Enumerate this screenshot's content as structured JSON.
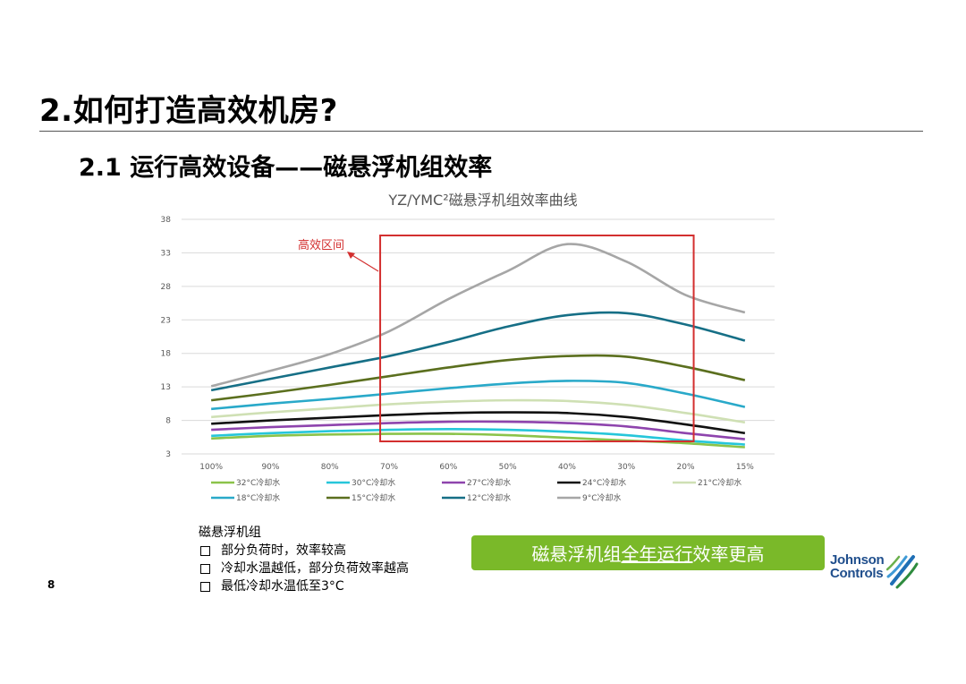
{
  "slide": {
    "title": "2.如何打造高效机房?",
    "section": "2.1 运行高效设备——磁悬浮机组效率",
    "page_number": "8"
  },
  "notes": {
    "heading": "磁悬浮机组",
    "items": [
      "部分负荷时，效率较高",
      "冷却水温越低，部分负荷效率越高",
      "最低冷却水温低至3°C"
    ]
  },
  "banner": {
    "prefix": "磁悬浮机组",
    "underlined": "全年运行",
    "suffix": "效率更高",
    "color": "#7ab929"
  },
  "logo": {
    "line1": "Johnson",
    "line2": "Controls",
    "color": "#1f4e8c"
  },
  "chart_data": {
    "type": "line",
    "title": "YZ/YMC²磁悬浮机组效率曲线",
    "categories": [
      "100%",
      "90%",
      "80%",
      "70%",
      "60%",
      "50%",
      "40%",
      "30%",
      "20%",
      "15%"
    ],
    "ylim": [
      3,
      38
    ],
    "yticks": [
      3,
      8,
      13,
      18,
      23,
      28,
      33,
      38
    ],
    "grid": true,
    "legend_position": "bottom",
    "annotation": {
      "label": "高效区间",
      "from_category": "70%",
      "to_category": "20%",
      "color": "#d32f2f"
    },
    "series": [
      {
        "name": "32°C冷却水",
        "color": "#8bc34a",
        "values": [
          5.3,
          5.7,
          5.9,
          6.0,
          6.0,
          5.8,
          5.4,
          5.0,
          4.6,
          4.0
        ]
      },
      {
        "name": "30°C冷却水",
        "color": "#26c6da",
        "values": [
          5.7,
          6.1,
          6.4,
          6.6,
          6.7,
          6.6,
          6.3,
          5.8,
          5.0,
          4.4
        ]
      },
      {
        "name": "27°C冷却水",
        "color": "#8e44ad",
        "values": [
          6.6,
          7.0,
          7.3,
          7.6,
          7.8,
          7.8,
          7.6,
          7.1,
          6.1,
          5.2
        ]
      },
      {
        "name": "24°C冷却水",
        "color": "#111111",
        "values": [
          7.5,
          8.0,
          8.4,
          8.8,
          9.1,
          9.2,
          9.1,
          8.5,
          7.4,
          6.1
        ]
      },
      {
        "name": "21°C冷却水",
        "color": "#cfe0b4",
        "values": [
          8.5,
          9.2,
          9.8,
          10.4,
          10.8,
          11.0,
          10.9,
          10.3,
          9.1,
          7.7
        ]
      },
      {
        "name": "18°C冷却水",
        "color": "#29a9c9",
        "values": [
          9.7,
          10.5,
          11.2,
          12.0,
          12.8,
          13.5,
          13.9,
          13.6,
          12.0,
          10.0
        ]
      },
      {
        "name": "15°C冷却水",
        "color": "#5b6f1e",
        "values": [
          11.0,
          12.1,
          13.3,
          14.6,
          15.9,
          17.0,
          17.6,
          17.5,
          16.0,
          14.0
        ]
      },
      {
        "name": "12°C冷却水",
        "color": "#166f86",
        "values": [
          12.5,
          14.2,
          15.9,
          17.6,
          19.7,
          22.0,
          23.7,
          24.0,
          22.3,
          19.9
        ]
      },
      {
        "name": "9°C冷却水",
        "color": "#a6a6a6",
        "values": [
          13.1,
          15.4,
          17.9,
          21.3,
          26.1,
          30.3,
          34.3,
          31.7,
          26.7,
          24.1
        ]
      }
    ]
  }
}
